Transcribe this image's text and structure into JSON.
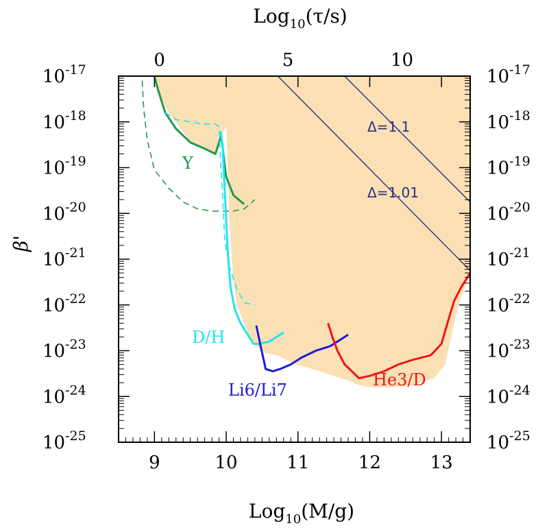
{
  "chart_data": {
    "type": "line",
    "title": "",
    "xlabel": "Log10(M/g)",
    "xlabel_base": "Log",
    "xlabel_sub": "10",
    "xlabel_rest": "(M/g)",
    "top_xlabel": "Log10(τ/s)",
    "top_xlabel_base": "Log",
    "top_xlabel_sub": "10",
    "top_xlabel_rest": "(τ/s)",
    "ylabel": "β'",
    "xlim": [
      8.5,
      13.4
    ],
    "ylim_log10": [
      -25,
      -17
    ],
    "y_scale": "log",
    "x_ticks": [
      "9",
      "10",
      "11",
      "12",
      "13"
    ],
    "top_x_ticks": [
      "0",
      "5",
      "10"
    ],
    "top_x_tick_mass_positions": [
      9.07,
      10.86,
      12.45
    ],
    "y_tick_exponents": [
      "-17",
      "-18",
      "-19",
      "-20",
      "-21",
      "-22",
      "-23",
      "-24",
      "-25"
    ],
    "y_tick_base": "10",
    "grid": false,
    "excluded_region_color": "#fbe0b5",
    "excluded_region": {
      "x": [
        9.0,
        9.1,
        9.2,
        9.3,
        9.5,
        9.7,
        9.85,
        9.9,
        9.95,
        10.0,
        10.05,
        10.1,
        10.15,
        10.25,
        10.35,
        10.45,
        10.55,
        10.7,
        10.85,
        10.95,
        11.1,
        11.3,
        11.5,
        11.7,
        11.85,
        12.0,
        12.3,
        12.6,
        12.9,
        13.05,
        13.15,
        13.25,
        13.4
      ],
      "log10_y": [
        -17.0,
        -17.5,
        -17.8,
        -18.0,
        -18.45,
        -18.58,
        -18.7,
        -18.3,
        -18.25,
        -18.1,
        -20.3,
        -21.5,
        -22.0,
        -22.4,
        -22.8,
        -22.95,
        -23.05,
        -23.1,
        -23.2,
        -23.3,
        -23.35,
        -23.45,
        -23.55,
        -23.65,
        -23.75,
        -23.8,
        -23.8,
        -23.75,
        -23.6,
        -23.3,
        -22.6,
        -21.9,
        -21.35
      ]
    },
    "series": [
      {
        "name": "Y",
        "color": "#1c9a4b",
        "style": "solid",
        "x": [
          9.0,
          9.05,
          9.15,
          9.3,
          9.5,
          9.72,
          9.85,
          9.93,
          10.0,
          10.1,
          10.25
        ],
        "log10_y": [
          -17.0,
          -17.3,
          -17.8,
          -18.15,
          -18.45,
          -18.6,
          -18.7,
          -18.3,
          -19.2,
          -19.6,
          -19.8
        ]
      },
      {
        "name": "Y (dashed)",
        "color": "#1c9a4b",
        "style": "dashed",
        "x": [
          8.83,
          8.85,
          8.9,
          9.0,
          9.2,
          9.4,
          9.6,
          9.8,
          10.0,
          10.1,
          10.25,
          10.4
        ],
        "log10_y": [
          -17.1,
          -17.7,
          -18.4,
          -19.05,
          -19.45,
          -19.75,
          -19.9,
          -19.95,
          -19.95,
          -19.95,
          -19.9,
          -19.7
        ]
      },
      {
        "name": "D/H",
        "color": "#22e4ef",
        "style": "solid",
        "x": [
          9.92,
          9.95,
          9.98,
          10.02,
          10.06,
          10.12,
          10.2,
          10.3,
          10.38,
          10.47,
          10.6,
          10.8
        ],
        "log10_y": [
          -18.2,
          -18.5,
          -19.5,
          -20.8,
          -21.6,
          -22.1,
          -22.4,
          -22.65,
          -22.85,
          -22.85,
          -22.8,
          -22.6
        ]
      },
      {
        "name": "D/H (dashed)",
        "color": "#22e4ef",
        "style": "dashed",
        "x": [
          9.15,
          9.3,
          9.5,
          9.7,
          9.85,
          9.9,
          9.92,
          9.95,
          9.98,
          10.05,
          10.15,
          10.25,
          10.4
        ],
        "log10_y": [
          -17.8,
          -17.95,
          -18.0,
          -18.05,
          -18.05,
          -18.1,
          -18.8,
          -19.6,
          -20.6,
          -21.2,
          -21.65,
          -21.95,
          -22.0
        ]
      },
      {
        "name": "Li6/Li7",
        "color": "#1a1ad4",
        "style": "solid",
        "x": [
          10.42,
          10.48,
          10.55,
          10.65,
          10.75,
          10.9,
          11.05,
          11.25,
          11.45,
          11.6,
          11.7
        ],
        "log10_y": [
          -22.45,
          -22.9,
          -23.4,
          -23.45,
          -23.4,
          -23.3,
          -23.15,
          -23.0,
          -22.9,
          -22.75,
          -22.65
        ]
      },
      {
        "name": "He3/D",
        "color": "#ef1414",
        "style": "solid",
        "x": [
          11.42,
          11.48,
          11.55,
          11.65,
          11.75,
          11.85,
          12.0,
          12.2,
          12.4,
          12.6,
          12.85,
          13.0,
          13.12,
          13.18,
          13.28,
          13.4
        ],
        "log10_y": [
          -22.4,
          -22.7,
          -23.0,
          -23.3,
          -23.45,
          -23.6,
          -23.55,
          -23.45,
          -23.3,
          -23.2,
          -23.1,
          -22.85,
          -22.2,
          -21.9,
          -21.6,
          -21.3
        ]
      },
      {
        "name": "Δ=1.1",
        "color": "#2b2f80",
        "style": "solid",
        "x": [
          11.65,
          13.4
        ],
        "log10_y": [
          -17.0,
          -19.75
        ]
      },
      {
        "name": "Δ=1.01",
        "color": "#2b2f80",
        "style": "solid",
        "x": [
          10.72,
          13.4
        ],
        "log10_y": [
          -17.0,
          -21.25
        ]
      }
    ],
    "labels": {
      "Y": "Y",
      "DH": "D/H",
      "Li": "Li6/Li7",
      "He": "He3/D",
      "delta1": "Δ=1.1",
      "delta2": "Δ=1.01"
    }
  }
}
